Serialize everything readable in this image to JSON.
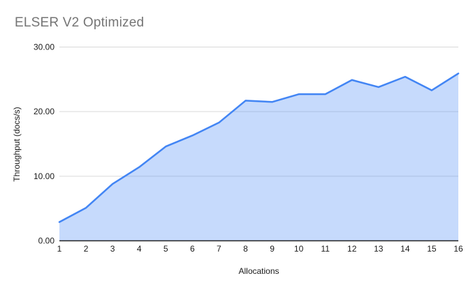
{
  "chart_data": {
    "type": "area",
    "title": "ELSER V2 Optimized",
    "xlabel": "Allocations",
    "ylabel": "Throughput (docs/s)",
    "x": [
      1,
      2,
      3,
      4,
      5,
      6,
      7,
      8,
      9,
      10,
      11,
      12,
      13,
      14,
      15,
      16
    ],
    "series": [
      {
        "name": "Throughput (docs/s)",
        "values": [
          2.9,
          5.1,
          8.8,
          11.4,
          14.6,
          16.3,
          18.3,
          21.7,
          21.5,
          22.7,
          22.7,
          24.9,
          23.8,
          25.4,
          23.3,
          25.9
        ]
      }
    ],
    "xlim": [
      1,
      16
    ],
    "ylim": [
      0,
      30
    ],
    "yticks": [
      0,
      10,
      20,
      30
    ],
    "ytick_labels": [
      "0.00",
      "10.00",
      "20.00",
      "30.00"
    ],
    "xtick_labels": [
      "1",
      "2",
      "3",
      "4",
      "5",
      "6",
      "7",
      "8",
      "9",
      "10",
      "11",
      "12",
      "13",
      "14",
      "15",
      "16"
    ],
    "grid": true,
    "legend": "none",
    "colors": {
      "line": "#4285f4",
      "fill": "rgba(66,133,244,0.30)",
      "gridline": "#d9d9d9",
      "axis_line": "#222222",
      "tick_label": "#1a1a1a",
      "title": "#757575"
    }
  }
}
